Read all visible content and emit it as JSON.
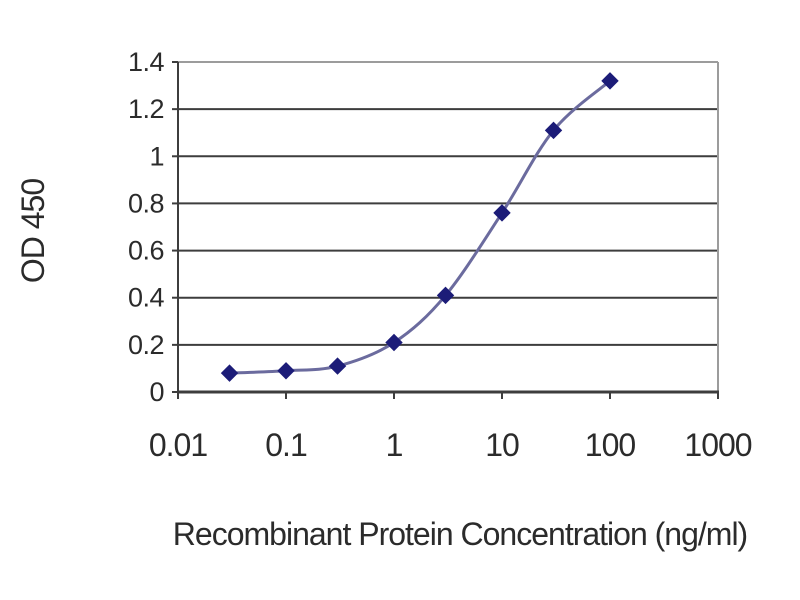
{
  "chart_data": {
    "type": "line",
    "title": "",
    "xlabel": "Recombinant Protein Concentration (ng/ml)",
    "ylabel": "OD 450",
    "x_scale": "log",
    "xlim": [
      0.01,
      1000
    ],
    "ylim": [
      0,
      1.4
    ],
    "x_ticks": {
      "values": [
        0.01,
        0.1,
        1,
        10,
        100,
        1000
      ],
      "labels": [
        "0.01",
        "0.1",
        "1",
        "10",
        "100",
        "1000"
      ]
    },
    "y_ticks": {
      "values": [
        0,
        0.2,
        0.4,
        0.6,
        0.8,
        1,
        1.2,
        1.4
      ],
      "labels": [
        "0",
        "0.2",
        "0.4",
        "0.6",
        "0.8",
        "1",
        "1.2",
        "1.4"
      ]
    },
    "grid": "horizontal",
    "legend": "none",
    "series": [
      {
        "name": "OD 450",
        "marker": "diamond",
        "x": [
          0.03,
          0.1,
          0.3,
          1,
          3,
          10,
          30,
          100
        ],
        "y": [
          0.08,
          0.09,
          0.11,
          0.21,
          0.41,
          0.76,
          1.11,
          1.32
        ]
      }
    ],
    "colors": {
      "line": "#6b6b9e",
      "marker": "#1c1c78",
      "gridline": "#3d3d3d",
      "axis": "#3d3d3d",
      "plot_border": "#9c9c9c",
      "text": "#2b2b2b",
      "background": "#ffffff"
    }
  }
}
